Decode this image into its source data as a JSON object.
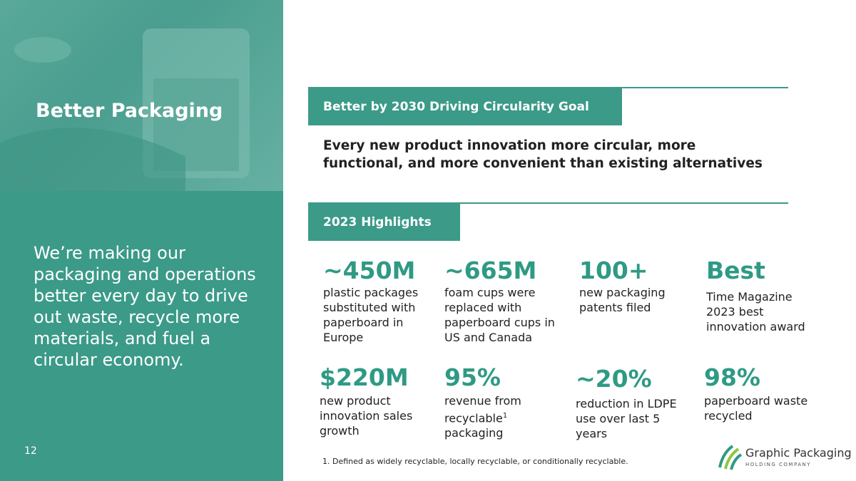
{
  "left": {
    "title": "Better Packaging",
    "body": "We’re making our packaging and operations better every day to drive out waste, recycle more materials, and fuel a circular economy.",
    "page_number": "12"
  },
  "goal": {
    "header": "Better by 2030 Driving Circularity Goal",
    "text": "Every new product innovation more circular, more functional, and more convenient than existing alternatives"
  },
  "highlights": {
    "header": "2023 Highlights",
    "stats": [
      {
        "value": "~450M",
        "desc": "plastic packages substituted with paperboard in Europe"
      },
      {
        "value": "~665M",
        "desc": "foam cups were replaced with paperboard cups in US and Canada"
      },
      {
        "value": "100+",
        "desc": "new packaging patents filed"
      },
      {
        "value": "Best",
        "desc": "Time Magazine 2023 best innovation award"
      },
      {
        "value": "$220M",
        "desc": "new product innovation sales growth"
      },
      {
        "value": "95%",
        "desc": "revenue from recyclable",
        "sup": "1",
        "desc_end": "packaging"
      },
      {
        "value": "~20%",
        "desc": "reduction in LDPE use over last 5 years"
      },
      {
        "value": "98%",
        "desc": "paperboard waste recycled"
      }
    ]
  },
  "footnote": "1. Defined as widely recyclable, locally recyclable, or conditionally recyclable.",
  "logo": {
    "name": "Graphic Packaging",
    "sub": "HOLDING COMPANY"
  }
}
